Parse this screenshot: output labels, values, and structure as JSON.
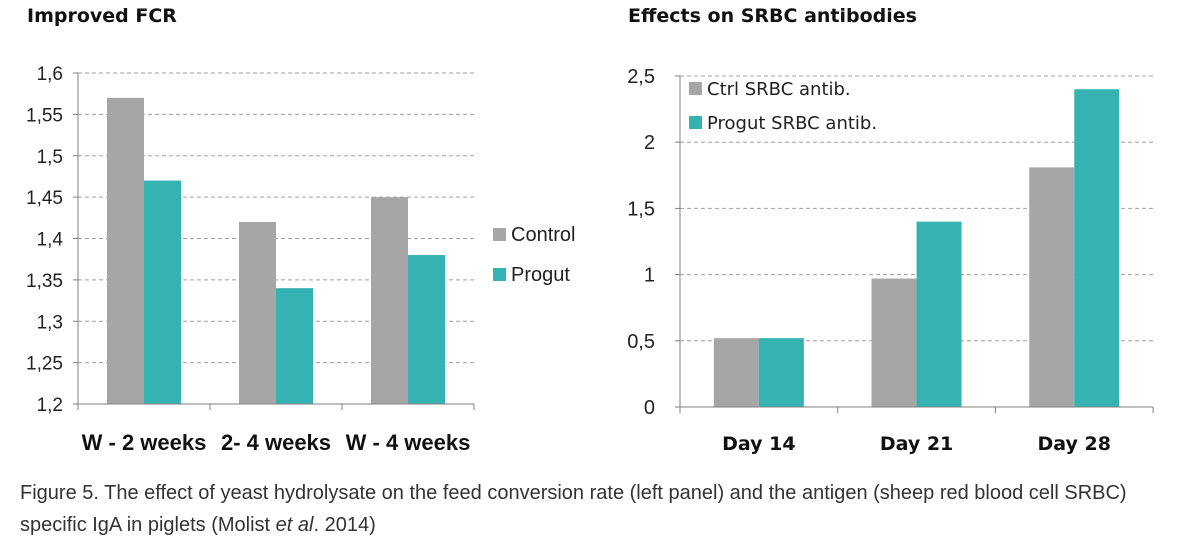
{
  "chart_data": [
    {
      "type": "bar",
      "title": "Improved FCR",
      "categories": [
        "W - 2 weeks",
        "2- 4 weeks",
        "W - 4 weeks"
      ],
      "series": [
        {
          "name": "Control",
          "color": "#a6a6a6",
          "values": [
            1.57,
            1.42,
            1.45
          ]
        },
        {
          "name": "Progut",
          "color": "#35b3b3",
          "values": [
            1.47,
            1.34,
            1.38
          ]
        }
      ],
      "ylim": [
        1.2,
        1.6
      ],
      "yticks": [
        "1,2",
        "1,25",
        "1,3",
        "1,35",
        "1,4",
        "1,45",
        "1,5",
        "1,55",
        "1,6"
      ],
      "ytick_values": [
        1.2,
        1.25,
        1.3,
        1.35,
        1.4,
        1.45,
        1.5,
        1.55,
        1.6
      ],
      "legend": "right",
      "grid": true,
      "xlabel": "",
      "ylabel": ""
    },
    {
      "type": "bar",
      "title": "Effects on SRBC antibodies",
      "categories": [
        "Day 14",
        "Day 21",
        "Day 28"
      ],
      "series": [
        {
          "name": "Ctrl SRBC antib.",
          "color": "#a6a6a6",
          "values": [
            0.52,
            0.97,
            1.81
          ]
        },
        {
          "name": "Progut SRBC antib.",
          "color": "#35b3b3",
          "values": [
            0.52,
            1.4,
            2.4
          ]
        }
      ],
      "ylim": [
        0,
        2.5
      ],
      "yticks": [
        "0",
        "0,5",
        "1",
        "1,5",
        "2",
        "2,5"
      ],
      "ytick_values": [
        0,
        0.5,
        1,
        1.5,
        2,
        2.5
      ],
      "legend": "top-left",
      "grid": true,
      "xlabel": "",
      "ylabel": ""
    }
  ],
  "caption": {
    "main": "Figure 5. The effect of yeast hydrolysate on the feed conversion rate (left panel) and the antigen (sheep red blood cell SRBC) specific IgA in piglets (Molist ",
    "italic": "et al",
    "tail": ". 2014)"
  }
}
